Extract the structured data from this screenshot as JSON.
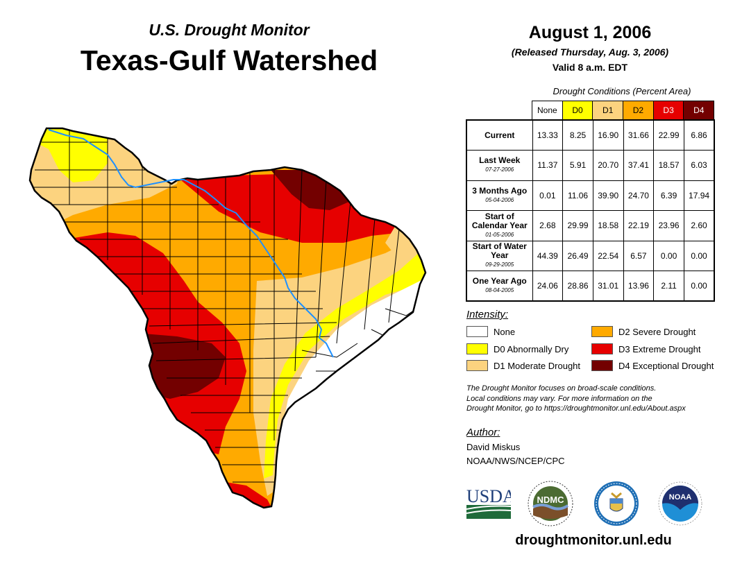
{
  "header": {
    "subtitle": "U.S. Drought Monitor",
    "title": "Texas-Gulf Watershed",
    "date": "August 1, 2006",
    "released": "(Released Thursday, Aug. 3, 2006)",
    "valid": "Valid 8 a.m. EDT"
  },
  "table": {
    "title": "Drought Conditions (Percent Area)",
    "columns": [
      {
        "label": "None",
        "color": "#ffffff",
        "text": "#000000"
      },
      {
        "label": "D0",
        "color": "#ffff00",
        "text": "#000000"
      },
      {
        "label": "D1",
        "color": "#fcd37f",
        "text": "#000000"
      },
      {
        "label": "D2",
        "color": "#ffaa00",
        "text": "#000000"
      },
      {
        "label": "D3",
        "color": "#e60000",
        "text": "#ffffff"
      },
      {
        "label": "D4",
        "color": "#730000",
        "text": "#ffffff"
      }
    ],
    "rows": [
      {
        "label": "Current",
        "date": "",
        "values": [
          "13.33",
          "8.25",
          "16.90",
          "31.66",
          "22.99",
          "6.86"
        ]
      },
      {
        "label": "Last Week",
        "date": "07-27-2006",
        "values": [
          "11.37",
          "5.91",
          "20.70",
          "37.41",
          "18.57",
          "6.03"
        ]
      },
      {
        "label": "3 Months Ago",
        "date": "05-04-2006",
        "values": [
          "0.01",
          "11.06",
          "39.90",
          "24.70",
          "6.39",
          "17.94"
        ]
      },
      {
        "label": "Start of Calendar Year",
        "date": "01-05-2006",
        "values": [
          "2.68",
          "29.99",
          "18.58",
          "22.19",
          "23.96",
          "2.60"
        ]
      },
      {
        "label": "Start of Water Year",
        "date": "09-29-2005",
        "values": [
          "44.39",
          "26.49",
          "22.54",
          "6.57",
          "0.00",
          "0.00"
        ]
      },
      {
        "label": "One Year Ago",
        "date": "08-04-2005",
        "values": [
          "24.06",
          "28.86",
          "31.01",
          "13.96",
          "2.11",
          "0.00"
        ]
      }
    ]
  },
  "legend": {
    "title": "Intensity:",
    "items": [
      {
        "label": "None",
        "color": "#ffffff"
      },
      {
        "label": "D0 Abnormally Dry",
        "color": "#ffff00"
      },
      {
        "label": "D1 Moderate Drought",
        "color": "#fcd37f"
      },
      {
        "label": "D2 Severe Drought",
        "color": "#ffaa00"
      },
      {
        "label": "D3 Extreme Drought",
        "color": "#e60000"
      },
      {
        "label": "D4 Exceptional Drought",
        "color": "#730000"
      }
    ]
  },
  "note": {
    "line1": "The Drought Monitor focuses on broad-scale conditions.",
    "line2": "Local conditions may vary. For more information on the",
    "line3": "Drought Monitor, go to https://droughtmonitor.unl.edu/About.aspx"
  },
  "author": {
    "heading": "Author:",
    "name": "David Miskus",
    "org": "NOAA/NWS/NCEP/CPC"
  },
  "logos": {
    "usda": "USDA",
    "ndmc": "NDMC",
    "noaa": "NOAA"
  },
  "footer": {
    "site": "droughtmonitor.unl.edu"
  },
  "map": {
    "region": "Texas-Gulf Watershed",
    "river_color": "#1e90ff"
  }
}
